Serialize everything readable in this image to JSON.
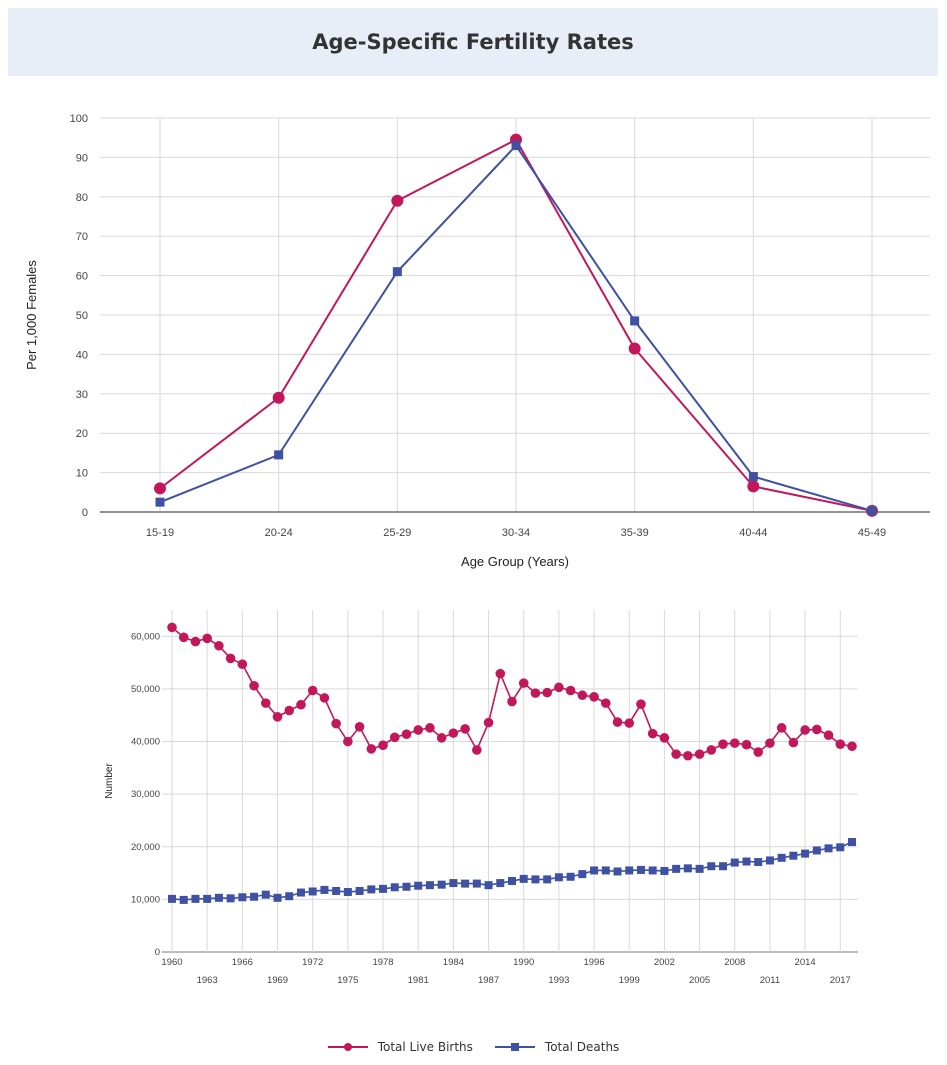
{
  "header": {
    "title": "Age-Specific Fertility Rates"
  },
  "colors": {
    "births": "#c2185b",
    "deaths": "#3f51a2",
    "grid": "#d9d9d9"
  },
  "legend": {
    "items": [
      {
        "label": "Total Live Births",
        "color": "#c2185b",
        "marker": "circle"
      },
      {
        "label": "Total Deaths",
        "color": "#3f51a2",
        "marker": "square"
      }
    ]
  },
  "chart_data": [
    {
      "type": "line",
      "title": "Age-Specific Fertility Rates",
      "xlabel": "Age Group (Years)",
      "ylabel": "Per 1,000 Females",
      "ylim": [
        0,
        100
      ],
      "yticks": [
        0,
        10,
        20,
        30,
        40,
        50,
        60,
        70,
        80,
        90,
        100
      ],
      "categories": [
        "15-19",
        "20-24",
        "25-29",
        "30-34",
        "35-39",
        "40-44",
        "45-49"
      ],
      "grid": true,
      "series": [
        {
          "values": [
            6,
            29,
            79,
            94.5,
            41.5,
            6.5,
            0.3
          ],
          "color": "#c2185b",
          "marker": "circle"
        },
        {
          "values": [
            2.5,
            14.5,
            61,
            93,
            48.5,
            9,
            0.3
          ],
          "color": "#3f51a2",
          "marker": "square"
        }
      ]
    },
    {
      "type": "line",
      "xlabel": "",
      "ylabel": "Number",
      "ylim": [
        0,
        65000
      ],
      "yticks": [
        0,
        10000,
        20000,
        30000,
        40000,
        50000,
        60000
      ],
      "ytick_labels": [
        "0",
        "10,000",
        "20,000",
        "30,000",
        "40,000",
        "50,000",
        "60,000"
      ],
      "xlim": [
        1960,
        2018
      ],
      "xticks_upper": [
        "1960",
        "1966",
        "1972",
        "1978",
        "1984",
        "1990",
        "1996",
        "2002",
        "2008",
        "2014"
      ],
      "xticks_lower": [
        "1963",
        "1969",
        "1975",
        "1981",
        "1987",
        "1993",
        "1999",
        "2005",
        "2011",
        "2017"
      ],
      "x": [
        1960,
        1961,
        1962,
        1963,
        1964,
        1965,
        1966,
        1967,
        1968,
        1969,
        1970,
        1971,
        1972,
        1973,
        1974,
        1975,
        1976,
        1977,
        1978,
        1979,
        1980,
        1981,
        1982,
        1983,
        1984,
        1985,
        1986,
        1987,
        1988,
        1989,
        1990,
        1991,
        1992,
        1993,
        1994,
        1995,
        1996,
        1997,
        1998,
        1999,
        2000,
        2001,
        2002,
        2003,
        2004,
        2005,
        2006,
        2007,
        2008,
        2009,
        2010,
        2011,
        2012,
        2013,
        2014,
        2015,
        2016,
        2017,
        2018
      ],
      "grid": true,
      "legend_position": "bottom",
      "series": [
        {
          "name": "Total Live Births",
          "color": "#c2185b",
          "marker": "circle",
          "values": [
            61700,
            59800,
            59000,
            59600,
            58200,
            55800,
            54700,
            50600,
            47300,
            44700,
            45900,
            47000,
            49700,
            48300,
            43400,
            40000,
            42800,
            38600,
            39300,
            40800,
            41400,
            42200,
            42600,
            40700,
            41600,
            42400,
            38400,
            43600,
            52900,
            47600,
            51100,
            49200,
            49300,
            50300,
            49700,
            48800,
            48500,
            47300,
            43700,
            43500,
            47100,
            41500,
            40700,
            37600,
            37300,
            37600,
            38400,
            39500,
            39700,
            39400,
            38000,
            39700,
            42600,
            39800,
            42200,
            42300,
            41200,
            39500,
            39100
          ]
        },
        {
          "name": "Total Deaths",
          "color": "#3f51a2",
          "marker": "square",
          "values": [
            10100,
            9900,
            10100,
            10100,
            10300,
            10200,
            10400,
            10500,
            10900,
            10300,
            10600,
            11300,
            11500,
            11800,
            11600,
            11400,
            11600,
            11900,
            12000,
            12300,
            12400,
            12600,
            12700,
            12800,
            13100,
            13000,
            13000,
            12700,
            13100,
            13500,
            13900,
            13800,
            13800,
            14200,
            14300,
            14800,
            15500,
            15500,
            15300,
            15500,
            15600,
            15500,
            15400,
            15800,
            15900,
            15800,
            16300,
            16300,
            17000,
            17200,
            17100,
            17400,
            17900,
            18300,
            18700,
            19300,
            19700,
            19900,
            20900
          ]
        }
      ]
    }
  ]
}
